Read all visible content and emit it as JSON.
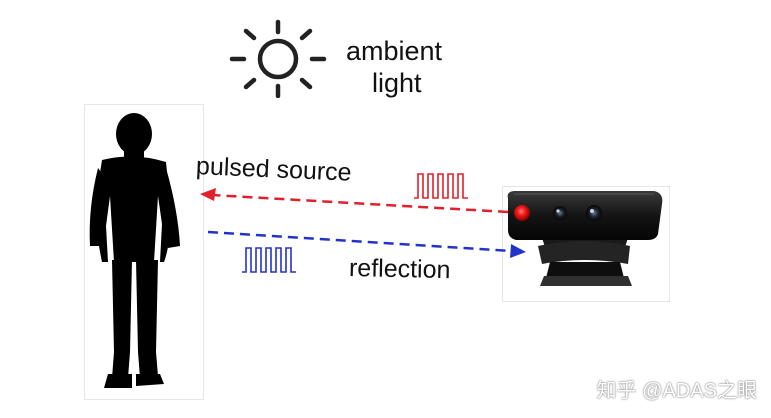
{
  "ambient": {
    "line1": "ambient",
    "line2": "light"
  },
  "arrows": {
    "pulsed_label": "pulsed source",
    "reflection_label": "reflection"
  },
  "colors": {
    "pulsed": "#e0202a",
    "reflection": "#2233cc",
    "silhouette": "#000000",
    "camera_body": "#141414"
  },
  "icons": [
    "sun-icon",
    "person-silhouette",
    "depth-camera",
    "pulse-wave-icon"
  ],
  "watermark": "知乎 @ADAS之眼"
}
